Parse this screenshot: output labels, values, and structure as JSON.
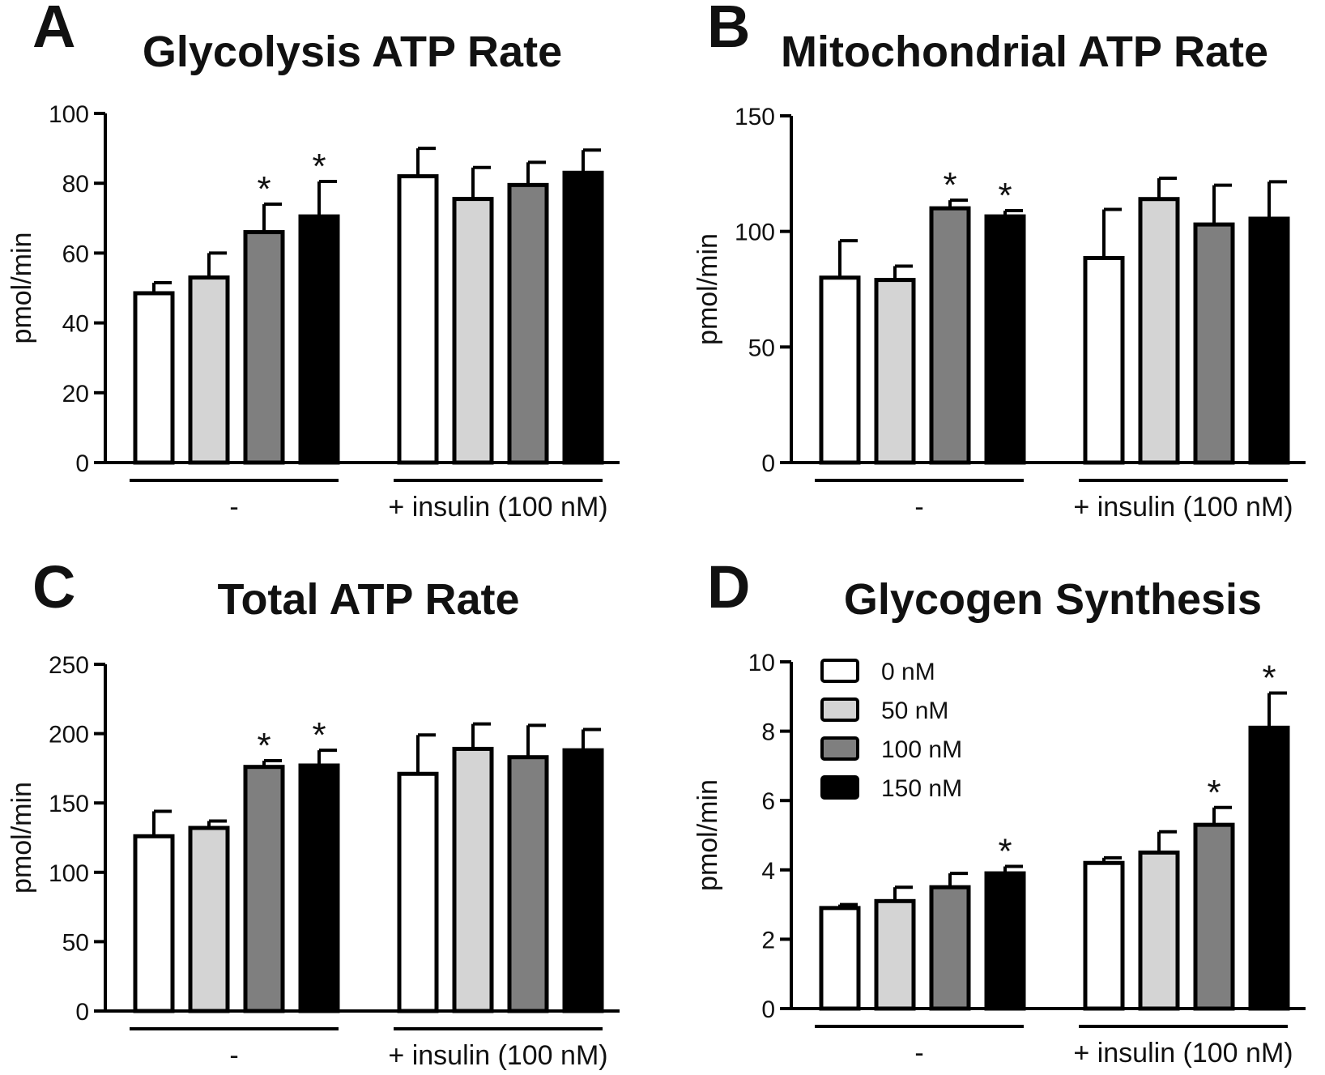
{
  "colors": {
    "0 nM": "#ffffff",
    "50 nM": "#d4d4d4",
    "100 nM": "#7f7f7f",
    "150 nM": "#000000"
  },
  "chart_data": [
    {
      "type": "bar",
      "letter": "A",
      "title": "Glycolysis ATP Rate",
      "ylabel": "pmol/min",
      "ylim": [
        0,
        100
      ],
      "yticks": [
        0,
        20,
        40,
        60,
        80,
        100
      ],
      "groups": [
        "-",
        "+ insulin (100 nM)"
      ],
      "series": [
        {
          "name": "0 nM",
          "values": [
            48.5,
            82
          ],
          "errors": [
            3,
            8
          ],
          "sig": [
            false,
            false
          ]
        },
        {
          "name": "50 nM",
          "values": [
            53,
            75.5
          ],
          "errors": [
            7,
            9
          ],
          "sig": [
            false,
            false
          ]
        },
        {
          "name": "100 nM",
          "values": [
            66,
            79.5
          ],
          "errors": [
            8,
            6.5
          ],
          "sig": [
            true,
            false
          ]
        },
        {
          "name": "150 nM",
          "values": [
            70.5,
            83
          ],
          "errors": [
            10,
            6.5
          ],
          "sig": [
            true,
            false
          ]
        }
      ]
    },
    {
      "type": "bar",
      "letter": "B",
      "title": "Mitochondrial ATP Rate",
      "ylabel": "pmol/min",
      "ylim": [
        0,
        150
      ],
      "yticks": [
        0,
        50,
        100,
        150
      ],
      "groups": [
        "-",
        "+ insulin (100 nM)"
      ],
      "series": [
        {
          "name": "0 nM",
          "values": [
            80,
            88.5
          ],
          "errors": [
            16,
            21
          ],
          "sig": [
            false,
            false
          ]
        },
        {
          "name": "50 nM",
          "values": [
            79,
            114
          ],
          "errors": [
            6,
            9
          ],
          "sig": [
            false,
            false
          ]
        },
        {
          "name": "100 nM",
          "values": [
            110,
            103
          ],
          "errors": [
            3.5,
            17
          ],
          "sig": [
            true,
            false
          ]
        },
        {
          "name": "150 nM",
          "values": [
            106.5,
            105.5
          ],
          "errors": [
            2.5,
            16
          ],
          "sig": [
            true,
            false
          ]
        }
      ]
    },
    {
      "type": "bar",
      "letter": "C",
      "title": "Total ATP Rate",
      "ylabel": "pmol/min",
      "ylim": [
        0,
        250
      ],
      "yticks": [
        0,
        50,
        100,
        150,
        200,
        250
      ],
      "groups": [
        "-",
        "+ insulin (100 nM)"
      ],
      "series": [
        {
          "name": "0 nM",
          "values": [
            126,
            171
          ],
          "errors": [
            18,
            28
          ],
          "sig": [
            false,
            false
          ]
        },
        {
          "name": "50 nM",
          "values": [
            132,
            189
          ],
          "errors": [
            5,
            18
          ],
          "sig": [
            false,
            false
          ]
        },
        {
          "name": "100 nM",
          "values": [
            176,
            183
          ],
          "errors": [
            4.5,
            23
          ],
          "sig": [
            true,
            false
          ]
        },
        {
          "name": "150 nM",
          "values": [
            177,
            188
          ],
          "errors": [
            11,
            15
          ],
          "sig": [
            true,
            false
          ]
        }
      ]
    },
    {
      "type": "bar",
      "letter": "D",
      "title": "Glycogen Synthesis",
      "ylabel": "pmol/min",
      "ylim": [
        0,
        10
      ],
      "yticks": [
        0,
        2,
        4,
        6,
        8,
        10
      ],
      "groups": [
        "-",
        "+ insulin (100 nM)"
      ],
      "legend": "top-left",
      "series": [
        {
          "name": "0 nM",
          "values": [
            2.9,
            4.2
          ],
          "errors": [
            0.1,
            0.15
          ],
          "sig": [
            false,
            false
          ]
        },
        {
          "name": "50 nM",
          "values": [
            3.1,
            4.5
          ],
          "errors": [
            0.4,
            0.6
          ],
          "sig": [
            false,
            false
          ]
        },
        {
          "name": "100 nM",
          "values": [
            3.5,
            5.3
          ],
          "errors": [
            0.4,
            0.5
          ],
          "sig": [
            false,
            true
          ]
        },
        {
          "name": "150 nM",
          "values": [
            3.9,
            8.1
          ],
          "errors": [
            0.2,
            1.0
          ],
          "sig": [
            true,
            true
          ]
        }
      ]
    }
  ],
  "sig_marker": "*"
}
